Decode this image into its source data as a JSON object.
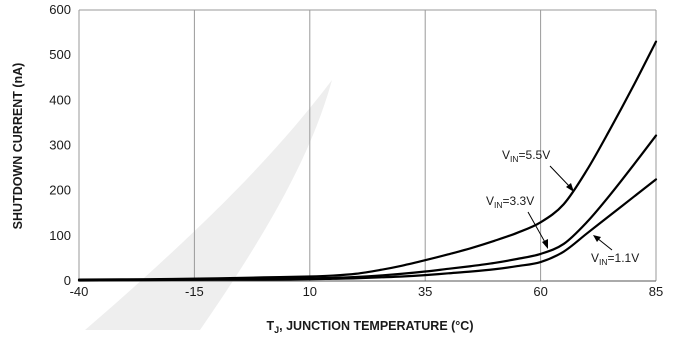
{
  "chart_data": {
    "type": "line",
    "xlabel": {
      "main": "T",
      "sub": "J",
      "rest": ", JUNCTION TEMPERATURE (°C)"
    },
    "ylabel": "SHUTDOWN CURRENT (nA)",
    "xlim": [
      -40,
      85
    ],
    "ylim": [
      0,
      600
    ],
    "x_ticks": [
      -40,
      -15,
      10,
      35,
      60,
      85
    ],
    "y_ticks": [
      0,
      100,
      200,
      300,
      400,
      500,
      600
    ],
    "grid": {
      "vertical": true,
      "horizontal": false
    },
    "line_color": "#000000",
    "series": [
      {
        "label": {
          "main": "V",
          "sub": "IN",
          "rest": "=5.5V"
        },
        "x": [
          -40,
          -25,
          -10,
          0,
          10,
          15,
          20,
          25,
          30,
          35,
          40,
          45,
          50,
          55,
          60,
          65,
          70,
          75,
          80,
          85
        ],
        "y": [
          3,
          4,
          6,
          8,
          10,
          12,
          16,
          24,
          34,
          46,
          59,
          73,
          89,
          107,
          130,
          170,
          245,
          335,
          430,
          530
        ]
      },
      {
        "label": {
          "main": "V",
          "sub": "IN",
          "rest": "=3.3V"
        },
        "x": [
          -40,
          -25,
          -10,
          0,
          10,
          15,
          20,
          25,
          30,
          35,
          40,
          45,
          50,
          55,
          60,
          65,
          70,
          75,
          80,
          85
        ],
        "y": [
          2,
          3,
          4,
          5,
          6,
          7,
          9,
          12,
          16,
          21,
          27,
          33,
          40,
          49,
          60,
          82,
          130,
          190,
          255,
          322
        ]
      },
      {
        "label": {
          "main": "V",
          "sub": "IN",
          "rest": "=1.1V"
        },
        "x": [
          -40,
          -25,
          -10,
          0,
          10,
          15,
          20,
          25,
          30,
          35,
          40,
          45,
          50,
          55,
          60,
          65,
          70,
          75,
          80,
          85
        ],
        "y": [
          1,
          2,
          3,
          3,
          4,
          5,
          6,
          8,
          10,
          13,
          17,
          21,
          26,
          33,
          42,
          65,
          105,
          145,
          185,
          225
        ]
      }
    ]
  }
}
